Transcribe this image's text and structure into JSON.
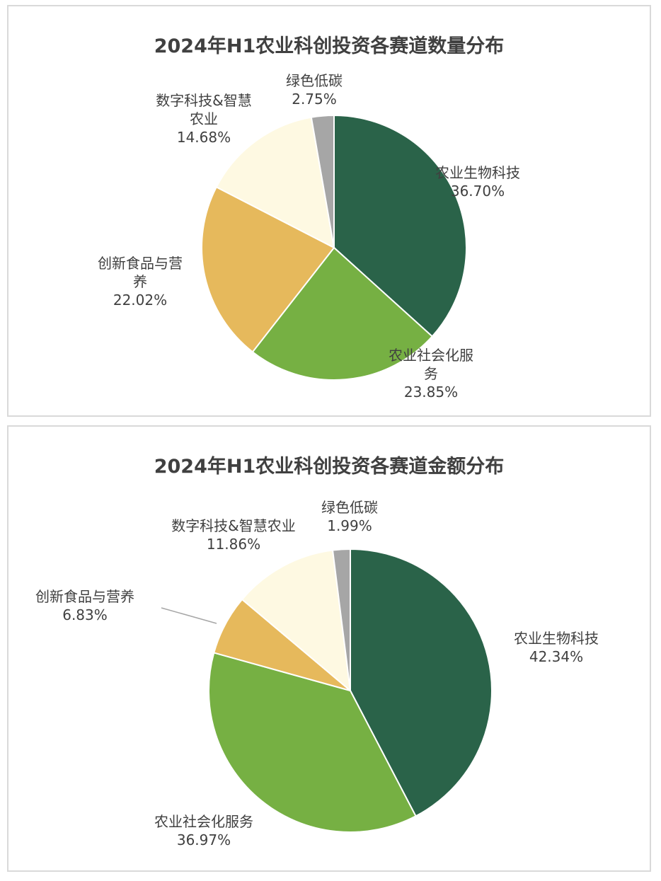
{
  "colors": {
    "农业生物科技": "#2a6349",
    "农业社会化服务": "#76b043",
    "创新食品与营养": "#e6b95c",
    "数字科技&智慧农业": "#fef9e2",
    "绿色低碳": "#a6a6a6"
  },
  "chart_data": [
    {
      "type": "pie",
      "title": "2024年H1农业科创投资各赛道数量分布",
      "slices": [
        {
          "label": "农业生物科技",
          "value": 36.7,
          "text": "36.70%"
        },
        {
          "label": "农业社会化服务",
          "value": 23.85,
          "text": "23.85%"
        },
        {
          "label": "创新食品与营养",
          "value": 22.02,
          "text": "22.02%"
        },
        {
          "label": "数字科技&智慧农业",
          "value": 14.68,
          "text": "14.68%"
        },
        {
          "label": "绿色低碳",
          "value": 2.75,
          "text": "2.75%"
        }
      ]
    },
    {
      "type": "pie",
      "title": "2024年H1农业科创投资各赛道金额分布",
      "slices": [
        {
          "label": "农业生物科技",
          "value": 42.34,
          "text": "42.34%"
        },
        {
          "label": "农业社会化服务",
          "value": 36.97,
          "text": "36.97%"
        },
        {
          "label": "创新食品与营养",
          "value": 6.83,
          "text": "6.83%"
        },
        {
          "label": "数字科技&智慧农业",
          "value": 11.86,
          "text": "11.86%"
        },
        {
          "label": "绿色低碳",
          "value": 1.99,
          "text": "1.99%"
        }
      ]
    }
  ]
}
